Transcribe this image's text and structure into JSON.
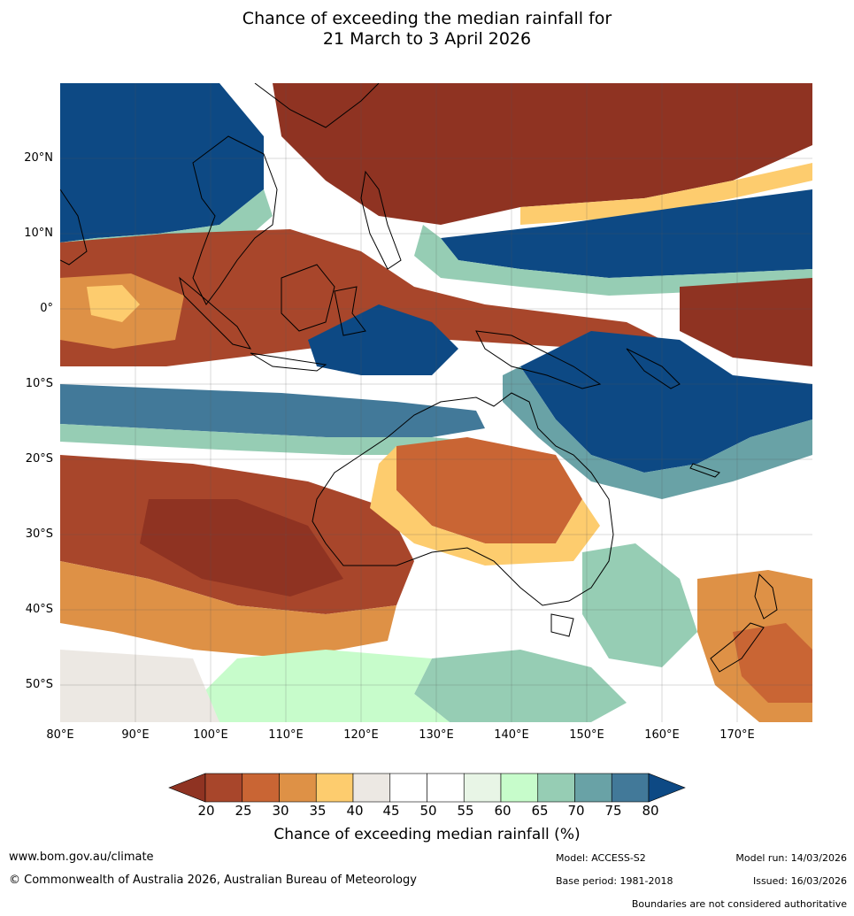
{
  "title": {
    "line1": "Chance of exceeding the median rainfall for",
    "line2": "21 March to 3 April 2026"
  },
  "map": {
    "lat_labels": [
      "20°N",
      "10°N",
      "0°",
      "10°S",
      "20°S",
      "30°S",
      "40°S",
      "50°S"
    ],
    "lon_labels": [
      "80°E",
      "90°E",
      "100°E",
      "110°E",
      "120°E",
      "130°E",
      "140°E",
      "150°E",
      "160°E",
      "170°E"
    ]
  },
  "colorbar": {
    "ticks": [
      "20",
      "25",
      "30",
      "35",
      "40",
      "45",
      "50",
      "55",
      "60",
      "65",
      "70",
      "75",
      "80"
    ],
    "colors": [
      "#8f3322",
      "#a8462b",
      "#c96534",
      "#de9146",
      "#fdcc6e",
      "#ece8e3",
      "#ffffff",
      "#ffffff",
      "#e8f5e6",
      "#c7fccb",
      "#96cdb4",
      "#69a2a6",
      "#427999",
      "#0d4984"
    ],
    "label": "Chance of exceeding median rainfall (%)"
  },
  "footer": {
    "website": "www.bom.gov.au/climate",
    "copyright": "© Commonwealth of Australia 2026, Australian Bureau of Meteorology",
    "model": "Model: ACCESS-S2",
    "model_run": "Model run: 14/03/2026",
    "base_period": "Base period: 1981-2018",
    "issued": "Issued: 16/03/2026",
    "disclaimer": "Boundaries are not considered authoritative"
  }
}
